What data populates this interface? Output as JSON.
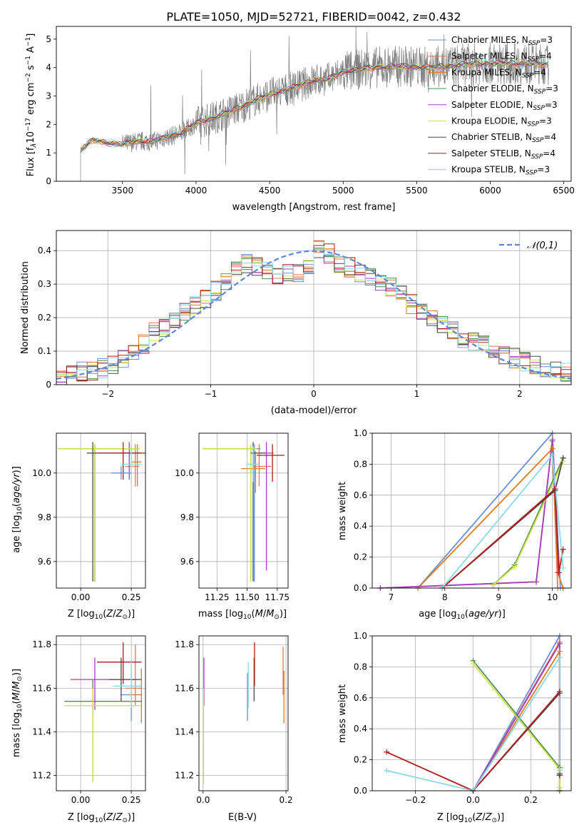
{
  "chart_data": [
    {
      "id": "spectrum",
      "type": "line",
      "title": "PLATE=1050, MJD=52721, FIBERID=0042, z=0.432",
      "xlabel": "wavelength [Angstrom, rest frame]",
      "ylabel": "Flux [f_λ 10^-17 erg cm^-2 s^-1 A^-1]",
      "xlim": [
        3050,
        6550
      ],
      "ylim": [
        0,
        5.45
      ],
      "xticks": [
        3500,
        4000,
        4500,
        5000,
        5500,
        6000,
        6500
      ],
      "yticks": [
        0,
        1,
        2,
        3,
        4,
        5
      ],
      "grid": false,
      "legend_position": "top-right",
      "anchors_x": [
        3215,
        3250,
        3300,
        3400,
        3500,
        3600,
        3700,
        3800,
        3900,
        4000,
        4100,
        4200,
        4300,
        4400,
        4500,
        4600,
        4700,
        4800,
        4900,
        5000,
        5200,
        5400,
        5600,
        5800,
        6000,
        6200,
        6400
      ],
      "anchors_y": [
        1.1,
        1.25,
        1.45,
        1.35,
        1.3,
        1.4,
        1.4,
        1.55,
        1.7,
        2.05,
        2.2,
        2.4,
        2.6,
        2.85,
        3.05,
        3.2,
        3.35,
        3.55,
        3.6,
        3.85,
        4.0,
        4.05,
        4.0,
        4.1,
        4.15,
        4.15,
        4.1
      ],
      "series": [
        {
          "name": "Chabrier MILES, N_SSP=3",
          "color": "#6a8fd8"
        },
        {
          "name": "Salpeter MILES, N_SSP=4",
          "color": "#e8745a"
        },
        {
          "name": "Kroupa MILES, N_SSP=4",
          "color": "#e07b1a"
        },
        {
          "name": "Chabrier ELODIE, N_SSP=3",
          "color": "#4f8f4f"
        },
        {
          "name": "Salpeter ELODIE, N_SSP=3",
          "color": "#a23fc0"
        },
        {
          "name": "Kroupa ELODIE, N_SSP=3",
          "color": "#cfe24a"
        },
        {
          "name": "Chabrier STELIB, N_SSP=4",
          "color": "#4a4a4a"
        },
        {
          "name": "Salpeter STELIB, N_SSP=4",
          "color": "#b21b1b"
        },
        {
          "name": "Kroupa STELIB, N_SSP=3",
          "color": "#8ad8e8"
        }
      ],
      "data_color": "#808080"
    },
    {
      "id": "residuals",
      "type": "line",
      "title": "",
      "xlabel": "(data-model)/error",
      "ylabel": "Normed distribution",
      "xlim": [
        -2.5,
        2.5
      ],
      "ylim": [
        0,
        0.46
      ],
      "xticks": [
        -2,
        -1,
        0,
        1,
        2
      ],
      "yticks": [
        0.0,
        0.1,
        0.2,
        0.3,
        0.4
      ],
      "grid": true,
      "legend_position": "top-right",
      "legend_label": "𝒩(0,1)",
      "gaussian_color": "#5b87d4",
      "base_hist": [
        0.02,
        0.03,
        0.04,
        0.04,
        0.05,
        0.06,
        0.08,
        0.09,
        0.12,
        0.16,
        0.17,
        0.19,
        0.22,
        0.24,
        0.26,
        0.28,
        0.31,
        0.34,
        0.36,
        0.35,
        0.34,
        0.33,
        0.34,
        0.33,
        0.36,
        0.4,
        0.39,
        0.36,
        0.35,
        0.33,
        0.32,
        0.31,
        0.29,
        0.27,
        0.24,
        0.22,
        0.2,
        0.18,
        0.16,
        0.14,
        0.13,
        0.12,
        0.1,
        0.09,
        0.08,
        0.07,
        0.06,
        0.05,
        0.05,
        0.04
      ]
    },
    {
      "id": "age_vs_Z",
      "type": "scatter",
      "xlabel": "Z [log10(Z/Z⊙)]",
      "ylabel": "age [log10(age/yr)]",
      "xlim": [
        -0.12,
        0.32
      ],
      "ylim": [
        9.48,
        10.18
      ],
      "xticks": [
        0.0,
        0.25
      ],
      "xtick_labels": [
        "0.00",
        "0.25"
      ],
      "yticks": [
        9.6,
        9.8,
        10.0
      ],
      "ytick_labels": [
        "9.6",
        "9.8",
        "10.0"
      ],
      "points": [
        {
          "x": 0.07,
          "y": 10.11,
          "xe": [
            -0.18,
            0.2
          ],
          "ye": [
            -0.6,
            0.02
          ],
          "c": 0
        },
        {
          "x": 0.27,
          "y": 10.03,
          "xe": [
            -0.05,
            0.02
          ],
          "ye": [
            -0.09,
            0.1
          ],
          "c": 1
        },
        {
          "x": 0.28,
          "y": 10.05,
          "xe": [
            -0.03,
            0.02
          ],
          "ye": [
            -0.11,
            0.08
          ],
          "c": 2
        },
        {
          "x": 0.07,
          "y": 10.11,
          "xe": [
            -0.14,
            0.22
          ],
          "ye": [
            -0.6,
            0.02
          ],
          "c": 3
        },
        {
          "x": 0.24,
          "y": 10.09,
          "xe": [
            -0.06,
            0.06
          ],
          "ye": [
            -0.12,
            0.05
          ],
          "c": 4
        },
        {
          "x": 0.07,
          "y": 10.11,
          "xe": [
            -0.18,
            0.22
          ],
          "ye": [
            -0.6,
            0.02
          ],
          "c": 5
        },
        {
          "x": 0.06,
          "y": 10.09,
          "xe": [
            -0.03,
            0.24
          ],
          "ye": [
            -0.58,
            0.05
          ],
          "c": 6
        },
        {
          "x": 0.21,
          "y": 10.09,
          "xe": [
            -0.13,
            0.11
          ],
          "ye": [
            -0.12,
            0.05
          ],
          "c": 7
        },
        {
          "x": 0.25,
          "y": 10.04,
          "xe": [
            -0.05,
            0.05
          ],
          "ye": [
            -0.08,
            0.08
          ],
          "c": 8
        },
        {
          "x": 0.2,
          "y": 10.0,
          "xe": [
            -0.05,
            0.05
          ],
          "ye": [
            -0.03,
            0.03
          ],
          "c": 0
        }
      ]
    },
    {
      "id": "age_vs_mass",
      "type": "scatter",
      "xlabel": "mass [log10(M/M⊙)]",
      "ylabel": "",
      "xlim": [
        11.1,
        11.84
      ],
      "ylim": [
        9.48,
        10.18
      ],
      "xticks": [
        11.25,
        11.5,
        11.75
      ],
      "xtick_labels": [
        "11.25",
        "11.50",
        "11.75"
      ],
      "yticks": [
        9.6,
        9.8,
        10.0
      ],
      "ytick_labels": [
        "9.6",
        "9.8",
        "10.0"
      ],
      "points": [
        {
          "x": 11.56,
          "y": 10.11,
          "xe": [
            -0.4,
            0.05
          ],
          "ye": [
            -0.6,
            0.02
          ],
          "c": 0
        },
        {
          "x": 11.6,
          "y": 10.03,
          "xe": [
            -0.05,
            0.1
          ],
          "ye": [
            -0.09,
            0.1
          ],
          "c": 1
        },
        {
          "x": 11.57,
          "y": 10.02,
          "xe": [
            -0.12,
            0.08
          ],
          "ye": [
            -0.11,
            0.08
          ],
          "c": 2
        },
        {
          "x": 11.53,
          "y": 10.11,
          "xe": [
            -0.4,
            0.05
          ],
          "ye": [
            -0.6,
            0.02
          ],
          "c": 3
        },
        {
          "x": 11.66,
          "y": 10.09,
          "xe": [
            -0.06,
            0.06
          ],
          "ye": [
            -0.53,
            0.05
          ],
          "c": 4
        },
        {
          "x": 11.53,
          "y": 10.11,
          "xe": [
            -0.4,
            0.05
          ],
          "ye": [
            -0.6,
            0.02
          ],
          "c": 5
        },
        {
          "x": 11.55,
          "y": 10.09,
          "xe": [
            -0.02,
            0.1
          ],
          "ye": [
            -0.58,
            0.05
          ],
          "c": 6
        },
        {
          "x": 11.71,
          "y": 10.08,
          "xe": [
            -0.13,
            0.1
          ],
          "ye": [
            -0.12,
            0.05
          ],
          "c": 7
        },
        {
          "x": 11.55,
          "y": 10.04,
          "xe": [
            -0.05,
            0.05
          ],
          "ye": [
            -0.08,
            0.08
          ],
          "c": 8
        }
      ]
    },
    {
      "id": "weight_vs_age",
      "type": "line",
      "xlabel": "age [log10(age/yr)]",
      "ylabel": "mass weight",
      "xlim": [
        6.65,
        10.35
      ],
      "ylim": [
        0,
        1.0
      ],
      "xticks": [
        7,
        8,
        9,
        10
      ],
      "yticks": [
        0.0,
        0.2,
        0.4,
        0.6,
        0.8,
        1.0
      ],
      "ytick_labels": [
        "0.0",
        "0.2",
        "0.4",
        "0.6",
        "0.8",
        "1.0"
      ],
      "grid": true,
      "series": [
        {
          "c": 0,
          "x": [
            7.5,
            10.0,
            10.15
          ],
          "y": [
            0.0,
            1.0,
            0.0
          ]
        },
        {
          "c": 1,
          "x": [
            6.8,
            9.7,
            10.0,
            10.1
          ],
          "y": [
            0.0,
            0.04,
            0.96,
            0.0
          ]
        },
        {
          "c": 2,
          "x": [
            7.5,
            10.0,
            10.1,
            10.2
          ],
          "y": [
            0.0,
            0.9,
            0.1,
            0.0
          ]
        },
        {
          "c": 3,
          "x": [
            8.9,
            9.3,
            10.2
          ],
          "y": [
            0.02,
            0.15,
            0.84
          ]
        },
        {
          "c": 4,
          "x": [
            6.8,
            9.7,
            10.0,
            10.12
          ],
          "y": [
            0.0,
            0.04,
            0.95,
            0.1
          ]
        },
        {
          "c": 5,
          "x": [
            8.9,
            9.3,
            10.2
          ],
          "y": [
            0.02,
            0.14,
            0.82
          ]
        },
        {
          "c": 6,
          "x": [
            7.95,
            10.05,
            10.2
          ],
          "y": [
            0.0,
            0.63,
            0.84
          ]
        },
        {
          "c": 7,
          "x": [
            7.95,
            10.05,
            10.12,
            10.2
          ],
          "y": [
            0.0,
            0.64,
            0.1,
            0.25
          ]
        },
        {
          "c": 8,
          "x": [
            7.95,
            10.0,
            10.2
          ],
          "y": [
            0.0,
            0.86,
            0.13
          ]
        }
      ]
    },
    {
      "id": "mass_vs_Z",
      "type": "scatter",
      "xlabel": "Z [log10(Z/Z⊙)]",
      "ylabel": "mass [log10(M/M⊙)]",
      "xlim": [
        -0.12,
        0.32
      ],
      "ylim": [
        11.13,
        11.84
      ],
      "xticks": [
        0.0,
        0.25
      ],
      "xtick_labels": [
        "0.00",
        "0.25"
      ],
      "yticks": [
        11.2,
        11.4,
        11.6,
        11.8
      ],
      "ytick_labels": [
        "11.2",
        "11.4",
        "11.6",
        "11.8"
      ],
      "points": [
        {
          "x": 0.25,
          "y": 11.57,
          "xe": [
            -0.05,
            0.05
          ],
          "ye": [
            -0.12,
            0.12
          ],
          "c": 0
        },
        {
          "x": 0.27,
          "y": 11.6,
          "xe": [
            -0.05,
            0.03
          ],
          "ye": [
            -0.08,
            0.2
          ],
          "c": 1
        },
        {
          "x": 0.3,
          "y": 11.57,
          "xe": [
            -0.06,
            0.0
          ],
          "ye": [
            -0.13,
            0.12
          ],
          "c": 2
        },
        {
          "x": 0.06,
          "y": 11.54,
          "xe": [
            -0.14,
            0.24
          ],
          "ye": [
            -0.37,
            0.1
          ],
          "c": 3
        },
        {
          "x": 0.07,
          "y": 11.64,
          "xe": [
            -0.12,
            0.22
          ],
          "ye": [
            -0.14,
            0.1
          ],
          "c": 4
        },
        {
          "x": 0.06,
          "y": 11.52,
          "xe": [
            -0.14,
            0.24
          ],
          "ye": [
            -0.35,
            0.08
          ],
          "c": 5
        },
        {
          "x": 0.2,
          "y": 11.64,
          "xe": [
            -0.06,
            0.1
          ],
          "ye": [
            -0.1,
            0.1
          ],
          "c": 6
        },
        {
          "x": 0.21,
          "y": 11.72,
          "xe": [
            -0.13,
            0.09
          ],
          "ye": [
            -0.1,
            0.09
          ],
          "c": 7
        },
        {
          "x": 0.25,
          "y": 11.61,
          "xe": [
            -0.09,
            0.05
          ],
          "ye": [
            -0.1,
            0.12
          ],
          "c": 8
        }
      ]
    },
    {
      "id": "mass_vs_ebv",
      "type": "scatter",
      "xlabel": "E(B-V)",
      "ylabel": "",
      "xlim": [
        -0.01,
        0.205
      ],
      "ylim": [
        11.13,
        11.84
      ],
      "xticks": [
        0.0,
        0.2
      ],
      "xtick_labels": [
        "0.0",
        "0.2"
      ],
      "yticks": [
        11.2,
        11.4,
        11.6,
        11.8
      ],
      "ytick_labels": [
        "11.2",
        "11.4",
        "11.6",
        "11.8"
      ],
      "points": [
        {
          "x": 0.107,
          "y": 11.57,
          "ye": [
            -0.12,
            0.1
          ],
          "c": 0
        },
        {
          "x": 0.193,
          "y": 11.66,
          "ye": [
            -0.09,
            0.13
          ],
          "c": 1
        },
        {
          "x": 0.195,
          "y": 11.57,
          "ye": [
            -0.13,
            0.11
          ],
          "c": 2
        },
        {
          "x": 0.001,
          "y": 11.4,
          "ye": [
            -0.23,
            0.2
          ],
          "c": 3
        },
        {
          "x": 0.002,
          "y": 11.64,
          "ye": [
            -0.12,
            0.1
          ],
          "c": 4
        },
        {
          "x": 0.001,
          "y": 11.4,
          "ye": [
            -0.24,
            0.2
          ],
          "c": 5
        },
        {
          "x": 0.123,
          "y": 11.64,
          "ye": [
            -0.1,
            0.1
          ],
          "c": 6
        },
        {
          "x": 0.124,
          "y": 11.72,
          "ye": [
            -0.11,
            0.09
          ],
          "c": 7
        },
        {
          "x": 0.109,
          "y": 11.61,
          "ye": [
            -0.1,
            0.11
          ],
          "c": 8
        }
      ]
    },
    {
      "id": "weight_vs_Z",
      "type": "line",
      "xlabel": "Z [log10(Z/Z⊙)]",
      "ylabel": "mass weight",
      "xlim": [
        -0.35,
        0.34
      ],
      "ylim": [
        0,
        1.0
      ],
      "xticks": [
        -0.2,
        0.0,
        0.2
      ],
      "xtick_labels": [
        "−0.2",
        "0.0",
        "0.2"
      ],
      "yticks": [
        0.0,
        0.2,
        0.4,
        0.6,
        0.8,
        1.0
      ],
      "ytick_labels": [
        "0.0",
        "0.2",
        "0.4",
        "0.6",
        "0.8",
        "1.0"
      ],
      "grid": true,
      "series": [
        {
          "c": 0,
          "x": [
            0.0,
            0.3,
            0.3
          ],
          "y": [
            0.0,
            1.0,
            0.0
          ]
        },
        {
          "c": 1,
          "x": [
            0.0,
            0.3,
            0.3
          ],
          "y": [
            0.0,
            0.96,
            0.0
          ]
        },
        {
          "c": 2,
          "x": [
            0.0,
            0.3,
            0.3,
            0.3
          ],
          "y": [
            0.0,
            0.9,
            0.1,
            0.0
          ]
        },
        {
          "c": 3,
          "x": [
            0.0,
            0.3,
            0.3
          ],
          "y": [
            0.84,
            0.15,
            0.0
          ]
        },
        {
          "c": 4,
          "x": [
            0.0,
            0.3,
            0.3
          ],
          "y": [
            0.0,
            0.95,
            0.1
          ]
        },
        {
          "c": 5,
          "x": [
            0.0,
            0.3,
            0.3
          ],
          "y": [
            0.82,
            0.14,
            0.02
          ]
        },
        {
          "c": 6,
          "x": [
            0.0,
            0.3,
            0.3
          ],
          "y": [
            0.0,
            0.63,
            0.11
          ]
        },
        {
          "c": 7,
          "x": [
            -0.3,
            0.0,
            0.3,
            0.3
          ],
          "y": [
            0.25,
            0.0,
            0.64,
            0.1
          ]
        },
        {
          "c": 8,
          "x": [
            -0.3,
            0.0,
            0.3,
            0.3
          ],
          "y": [
            0.13,
            0.0,
            0.86,
            0.13
          ]
        }
      ]
    }
  ]
}
